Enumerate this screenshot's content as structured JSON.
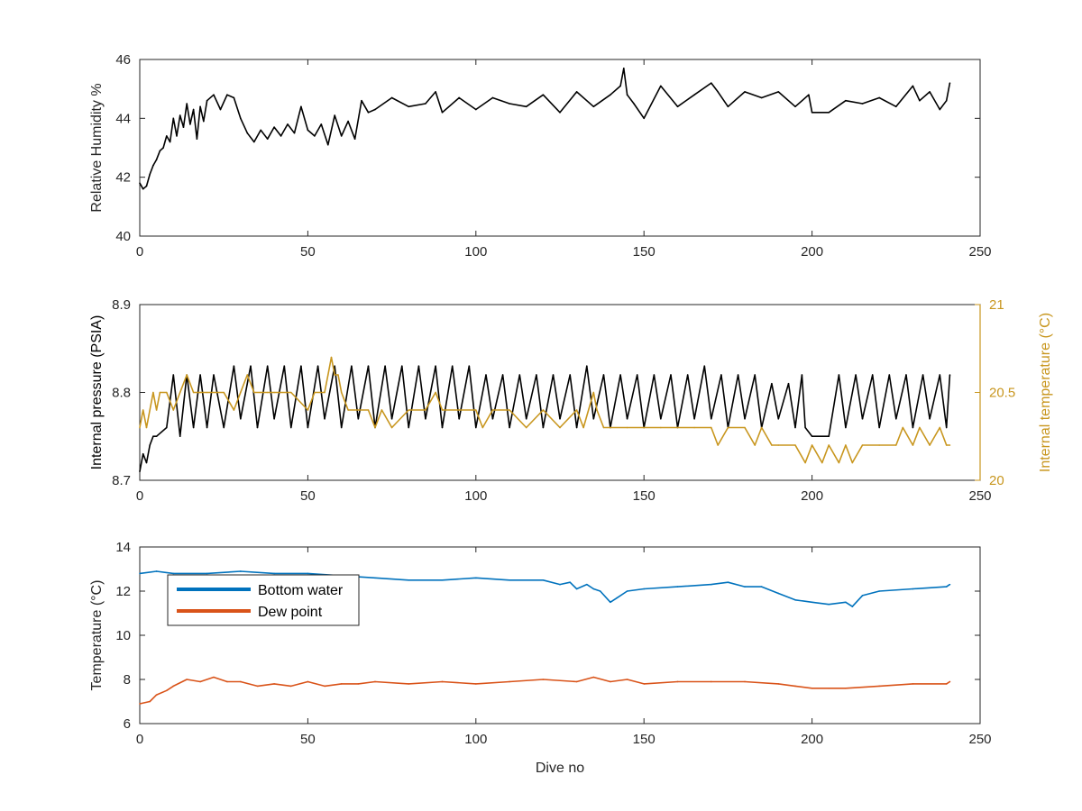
{
  "chart_data": [
    {
      "type": "line",
      "xlabel": "",
      "ylabel": "Relative Humidity %",
      "xlim": [
        0,
        250
      ],
      "ylim": [
        40,
        46
      ],
      "xticks": [
        0,
        50,
        100,
        150,
        200,
        250
      ],
      "yticks": [
        40,
        42,
        44,
        46
      ],
      "series": [
        {
          "color": "#000000",
          "x": [
            0,
            1,
            2,
            3,
            4,
            5,
            6,
            7,
            8,
            9,
            10,
            11,
            12,
            13,
            14,
            15,
            16,
            17,
            18,
            19,
            20,
            22,
            24,
            26,
            28,
            30,
            32,
            34,
            36,
            38,
            40,
            42,
            44,
            46,
            48,
            50,
            52,
            54,
            56,
            58,
            60,
            62,
            64,
            66,
            68,
            70,
            75,
            80,
            85,
            88,
            90,
            95,
            100,
            105,
            110,
            115,
            120,
            125,
            130,
            135,
            140,
            143,
            144,
            145,
            147,
            150,
            155,
            160,
            165,
            170,
            172,
            175,
            180,
            185,
            190,
            195,
            199,
            200,
            205,
            210,
            215,
            220,
            225,
            230,
            232,
            235,
            238,
            240,
            241
          ],
          "values": [
            41.8,
            41.6,
            41.7,
            42.1,
            42.4,
            42.6,
            42.9,
            43.0,
            43.4,
            43.2,
            44.0,
            43.4,
            44.1,
            43.7,
            44.5,
            43.8,
            44.3,
            43.3,
            44.4,
            43.9,
            44.6,
            44.8,
            44.3,
            44.8,
            44.7,
            44.0,
            43.5,
            43.2,
            43.6,
            43.3,
            43.7,
            43.4,
            43.8,
            43.5,
            44.4,
            43.6,
            43.4,
            43.8,
            43.1,
            44.1,
            43.4,
            43.9,
            43.3,
            44.6,
            44.2,
            44.3,
            44.7,
            44.4,
            44.5,
            44.9,
            44.2,
            44.7,
            44.3,
            44.7,
            44.5,
            44.4,
            44.8,
            44.2,
            44.9,
            44.4,
            44.8,
            45.1,
            45.7,
            44.8,
            44.5,
            44.0,
            45.1,
            44.4,
            44.8,
            45.2,
            44.9,
            44.4,
            44.9,
            44.7,
            44.9,
            44.4,
            44.8,
            44.2,
            44.2,
            44.6,
            44.5,
            44.7,
            44.4,
            45.1,
            44.6,
            44.9,
            44.3,
            44.6,
            45.2
          ]
        }
      ]
    },
    {
      "type": "line",
      "xlabel": "",
      "ylabel": "Internal pressure (PSIA)",
      "y2label": "Internal temperature (°C)",
      "xlim": [
        0,
        250
      ],
      "ylim": [
        8.7,
        8.9
      ],
      "y2lim": [
        20,
        21
      ],
      "xticks": [
        0,
        50,
        100,
        150,
        200,
        250
      ],
      "yticks": [
        8.7,
        8.8,
        8.9
      ],
      "y2ticks": [
        20,
        20.5,
        21
      ],
      "series": [
        {
          "axis": "left",
          "color": "#000000",
          "x": [
            0,
            1,
            2,
            3,
            4,
            5,
            8,
            10,
            12,
            14,
            16,
            18,
            20,
            22,
            25,
            28,
            30,
            33,
            35,
            38,
            40,
            43,
            45,
            48,
            50,
            53,
            55,
            58,
            60,
            63,
            65,
            68,
            70,
            73,
            75,
            78,
            80,
            83,
            85,
            88,
            90,
            93,
            95,
            98,
            100,
            103,
            105,
            108,
            110,
            113,
            115,
            118,
            120,
            123,
            125,
            128,
            130,
            133,
            135,
            138,
            140,
            143,
            145,
            148,
            150,
            153,
            155,
            158,
            160,
            163,
            165,
            168,
            170,
            173,
            175,
            178,
            180,
            183,
            185,
            188,
            190,
            193,
            195,
            197,
            198,
            200,
            205,
            208,
            210,
            213,
            215,
            218,
            220,
            223,
            225,
            228,
            230,
            233,
            235,
            238,
            240,
            241
          ],
          "values": [
            8.71,
            8.73,
            8.72,
            8.74,
            8.75,
            8.75,
            8.76,
            8.82,
            8.75,
            8.82,
            8.76,
            8.82,
            8.76,
            8.82,
            8.76,
            8.83,
            8.77,
            8.83,
            8.76,
            8.83,
            8.77,
            8.83,
            8.76,
            8.83,
            8.76,
            8.83,
            8.77,
            8.83,
            8.76,
            8.83,
            8.77,
            8.83,
            8.76,
            8.83,
            8.77,
            8.83,
            8.76,
            8.83,
            8.77,
            8.83,
            8.76,
            8.83,
            8.77,
            8.83,
            8.76,
            8.82,
            8.77,
            8.82,
            8.76,
            8.82,
            8.77,
            8.82,
            8.76,
            8.82,
            8.77,
            8.82,
            8.76,
            8.83,
            8.77,
            8.82,
            8.76,
            8.82,
            8.77,
            8.82,
            8.76,
            8.82,
            8.77,
            8.82,
            8.76,
            8.82,
            8.77,
            8.83,
            8.77,
            8.82,
            8.76,
            8.82,
            8.77,
            8.82,
            8.76,
            8.81,
            8.77,
            8.81,
            8.76,
            8.82,
            8.76,
            8.75,
            8.75,
            8.82,
            8.76,
            8.82,
            8.77,
            8.82,
            8.76,
            8.82,
            8.77,
            8.82,
            8.76,
            8.82,
            8.77,
            8.82,
            8.76,
            8.82
          ]
        },
        {
          "axis": "right",
          "color": "#c8961e",
          "x": [
            0,
            1,
            2,
            4,
            5,
            6,
            8,
            10,
            12,
            14,
            16,
            18,
            20,
            25,
            28,
            30,
            32,
            34,
            36,
            38,
            40,
            45,
            50,
            52,
            55,
            56,
            57,
            58,
            59,
            60,
            62,
            65,
            68,
            70,
            72,
            75,
            80,
            85,
            88,
            90,
            95,
            100,
            102,
            105,
            110,
            115,
            120,
            125,
            130,
            132,
            135,
            136,
            138,
            140,
            145,
            150,
            155,
            160,
            165,
            170,
            172,
            175,
            180,
            183,
            185,
            188,
            190,
            195,
            198,
            200,
            203,
            205,
            208,
            210,
            212,
            215,
            220,
            225,
            227,
            230,
            232,
            235,
            238,
            240,
            241
          ],
          "values": [
            20.3,
            20.4,
            20.3,
            20.5,
            20.4,
            20.5,
            20.5,
            20.4,
            20.5,
            20.6,
            20.5,
            20.5,
            20.5,
            20.5,
            20.4,
            20.5,
            20.6,
            20.5,
            20.5,
            20.5,
            20.5,
            20.5,
            20.4,
            20.5,
            20.5,
            20.6,
            20.7,
            20.6,
            20.6,
            20.5,
            20.4,
            20.4,
            20.4,
            20.3,
            20.4,
            20.3,
            20.4,
            20.4,
            20.5,
            20.4,
            20.4,
            20.4,
            20.3,
            20.4,
            20.4,
            20.3,
            20.4,
            20.3,
            20.4,
            20.3,
            20.5,
            20.4,
            20.3,
            20.3,
            20.3,
            20.3,
            20.3,
            20.3,
            20.3,
            20.3,
            20.2,
            20.3,
            20.3,
            20.2,
            20.3,
            20.2,
            20.2,
            20.2,
            20.1,
            20.2,
            20.1,
            20.2,
            20.1,
            20.2,
            20.1,
            20.2,
            20.2,
            20.2,
            20.3,
            20.2,
            20.3,
            20.2,
            20.3,
            20.2,
            20.2
          ]
        }
      ]
    },
    {
      "type": "line",
      "xlabel": "Dive no",
      "ylabel": "Temperature (°C)",
      "xlim": [
        0,
        250
      ],
      "ylim": [
        6,
        14
      ],
      "xticks": [
        0,
        50,
        100,
        150,
        200,
        250
      ],
      "yticks": [
        6,
        8,
        10,
        12,
        14
      ],
      "legend_position": "top-left",
      "series": [
        {
          "name": "Bottom water",
          "color": "#0072bd",
          "x": [
            0,
            5,
            10,
            20,
            30,
            40,
            50,
            60,
            70,
            80,
            90,
            100,
            110,
            120,
            125,
            128,
            130,
            133,
            135,
            137,
            140,
            142,
            145,
            150,
            160,
            170,
            175,
            180,
            185,
            190,
            195,
            200,
            205,
            210,
            212,
            215,
            220,
            230,
            240,
            241
          ],
          "values": [
            12.8,
            12.9,
            12.8,
            12.8,
            12.9,
            12.8,
            12.8,
            12.7,
            12.6,
            12.5,
            12.5,
            12.6,
            12.5,
            12.5,
            12.3,
            12.4,
            12.1,
            12.3,
            12.1,
            12.0,
            11.5,
            11.7,
            12.0,
            12.1,
            12.2,
            12.3,
            12.4,
            12.2,
            12.2,
            11.9,
            11.6,
            11.5,
            11.4,
            11.5,
            11.3,
            11.8,
            12.0,
            12.1,
            12.2,
            12.3
          ]
        },
        {
          "name": "Dew point",
          "color": "#d95319",
          "x": [
            0,
            3,
            5,
            8,
            10,
            14,
            18,
            22,
            26,
            30,
            35,
            40,
            45,
            50,
            55,
            60,
            65,
            70,
            80,
            90,
            100,
            110,
            120,
            130,
            135,
            140,
            145,
            150,
            160,
            170,
            180,
            190,
            195,
            200,
            205,
            210,
            220,
            230,
            240,
            241
          ],
          "values": [
            6.9,
            7.0,
            7.3,
            7.5,
            7.7,
            8.0,
            7.9,
            8.1,
            7.9,
            7.9,
            7.7,
            7.8,
            7.7,
            7.9,
            7.7,
            7.8,
            7.8,
            7.9,
            7.8,
            7.9,
            7.8,
            7.9,
            8.0,
            7.9,
            8.1,
            7.9,
            8.0,
            7.8,
            7.9,
            7.9,
            7.9,
            7.8,
            7.7,
            7.6,
            7.6,
            7.6,
            7.7,
            7.8,
            7.8,
            7.9
          ]
        }
      ]
    }
  ]
}
